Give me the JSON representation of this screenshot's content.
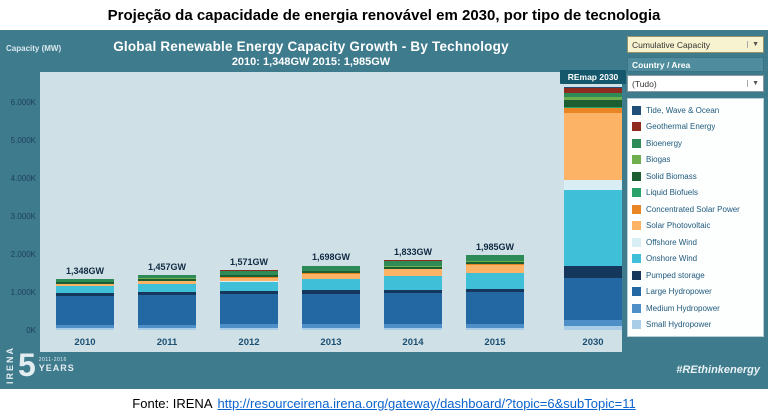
{
  "header": {
    "title": "Projeção da capacidade de energia renovável em 2030, por tipo de tecnologia"
  },
  "chart": {
    "title": "Global Renewable Energy Capacity Growth  - By Technology",
    "subtitle": "2010: 1,348GW   2015: 1,985GW",
    "ylabel": "Capacity (MW)",
    "remap_label": "REmap 2030"
  },
  "chart_data": {
    "type": "bar",
    "stacked": true,
    "title": "Global Renewable Energy Capacity Growth - By Technology",
    "xlabel": "",
    "ylabel": "Capacity (MW)",
    "ylim": [
      0,
      6600
    ],
    "ytick_labels": [
      "0K",
      "1.000K",
      "2.000K",
      "3.000K",
      "4.000K",
      "5.000K",
      "6.000K"
    ],
    "categories": [
      "2010",
      "2011",
      "2012",
      "2013",
      "2014",
      "2015",
      "2030"
    ],
    "totals_labels": [
      "1,348GW",
      "1,457GW",
      "1,571GW",
      "1,698GW",
      "1,833GW",
      "1,985GW",
      ""
    ],
    "totals_gw": [
      1348,
      1457,
      1571,
      1698,
      1833,
      1985,
      6400
    ],
    "legend_position": "right",
    "series": [
      {
        "name": "Small Hydropower",
        "color": "#a9cde6",
        "values": [
          45,
          46,
          47,
          48,
          49,
          50,
          100
        ]
      },
      {
        "name": "Medium Hydropower",
        "color": "#4e8fc7",
        "values": [
          95,
          97,
          99,
          101,
          103,
          105,
          160
        ]
      },
      {
        "name": "Large Hydropower",
        "color": "#2368a2",
        "values": [
          760,
          775,
          790,
          805,
          820,
          835,
          1100
        ]
      },
      {
        "name": "Pumped storage",
        "color": "#16375c",
        "values": [
          80,
          82,
          85,
          88,
          91,
          95,
          325
        ]
      },
      {
        "name": "Onshore Wind",
        "color": "#3fc0d8",
        "values": [
          178,
          215,
          255,
          300,
          349,
          405,
          1990
        ]
      },
      {
        "name": "Offshore Wind",
        "color": "#d8edf4",
        "values": [
          3,
          4,
          5,
          7,
          8,
          12,
          280
        ]
      },
      {
        "name": "Solar Photovoltaic",
        "color": "#fcb366",
        "values": [
          40,
          70,
          100,
          137,
          177,
          222,
          1760
        ]
      },
      {
        "name": "Concentrated Solar Power",
        "color": "#e98524",
        "values": [
          1,
          2,
          3,
          4,
          4,
          5,
          120
        ]
      },
      {
        "name": "Liquid Biofuels",
        "color": "#2aa06a",
        "values": [
          2,
          2,
          2,
          3,
          3,
          3,
          30
        ]
      },
      {
        "name": "Solid Biomass",
        "color": "#1c5e31",
        "values": [
          54,
          57,
          60,
          63,
          66,
          70,
          200
        ]
      },
      {
        "name": "Biogas",
        "color": "#6fae4e",
        "values": [
          8,
          9,
          10,
          11,
          12,
          14,
          60
        ]
      },
      {
        "name": "Bioenergy",
        "color": "#2e8b57",
        "values": [
          71,
          87,
          103,
          119,
          138,
          155,
          105
        ]
      },
      {
        "name": "Geothermal Energy",
        "color": "#8e2b1e",
        "values": [
          10,
          10,
          11,
          11,
          12,
          13,
          140
        ]
      },
      {
        "name": "Tide, Wave & Ocean",
        "color": "#1f4e79",
        "values": [
          1,
          1,
          1,
          1,
          1,
          1,
          30
        ]
      }
    ]
  },
  "panel": {
    "dropdown1": "Cumulative Capacity",
    "country_label": "Country / Area",
    "dropdown2": "(Tudo)"
  },
  "branding": {
    "irena": "IRENA",
    "years_big": "5",
    "years_range": "2011-2016",
    "years_word": "YEARS",
    "hashtag": "#REthinkenergy"
  },
  "footer": {
    "source_label": "Fonte: IRENA",
    "link": "http://resourceirena.irena.org/gateway/dashboard/?topic=6&subTopic=11"
  }
}
